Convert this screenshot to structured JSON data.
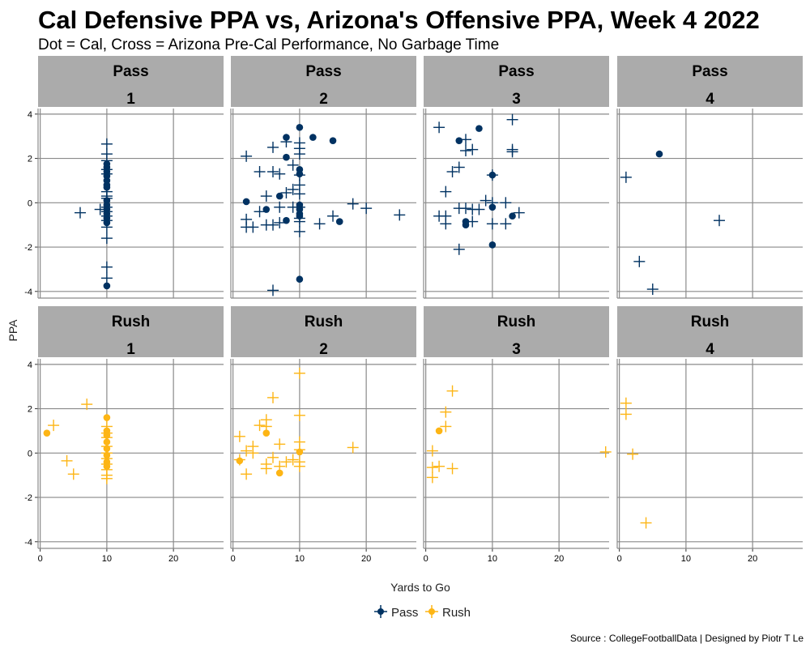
{
  "chart_data": {
    "type": "scatter",
    "title": "Cal Defensive PPA vs, Arizona's Offensive PPA, Week 4 2022",
    "subtitle": "Dot = Cal, Cross = Arizona Pre-Cal Performance, No Garbage Time",
    "xlabel": "Yards to Go",
    "ylabel": "PPA",
    "xlim": [
      -0.2,
      27.4
    ],
    "ylim": [
      -4.3,
      4.25
    ],
    "x_ticks": [
      0,
      10,
      20
    ],
    "y_ticks": [
      4,
      2,
      0,
      -2,
      -4
    ],
    "x_tick_labels": [
      "0",
      "10",
      "20"
    ],
    "y_tick_labels": [
      "4",
      "2",
      "0",
      "-2",
      "-4"
    ],
    "grid": true,
    "legend": {
      "placement": "bottom",
      "entries": [
        {
          "name": "Pass",
          "color": "#003262"
        },
        {
          "name": "Rush",
          "color": "#FDB515"
        }
      ]
    },
    "caption": "Source : CollegeFootballData | Designed by Piotr T Le",
    "facets": [
      {
        "type": "Pass",
        "down": "1",
        "dots": [
          [
            10,
            1.75
          ],
          [
            10,
            1.6
          ],
          [
            10,
            1.4
          ],
          [
            10,
            1.2
          ],
          [
            10,
            1.0
          ],
          [
            10,
            0.8
          ],
          [
            10,
            0.7
          ],
          [
            10,
            0.1
          ],
          [
            10,
            -0.1
          ],
          [
            10,
            -0.3
          ],
          [
            10,
            -0.5
          ],
          [
            10,
            -0.7
          ],
          [
            10,
            -0.9
          ],
          [
            10,
            -3.75
          ]
        ],
        "crosses": [
          [
            10,
            2.65
          ],
          [
            10,
            2.2
          ],
          [
            10,
            1.9
          ],
          [
            10,
            1.5
          ],
          [
            10,
            1.3
          ],
          [
            10,
            0.5
          ],
          [
            10,
            0.3
          ],
          [
            10,
            0.2
          ],
          [
            10,
            -0.2
          ],
          [
            10,
            -0.4
          ],
          [
            10,
            -0.6
          ],
          [
            10,
            -0.8
          ],
          [
            10,
            -1.1
          ],
          [
            10,
            -1.6
          ],
          [
            10,
            -2.9
          ],
          [
            10,
            -3.4
          ],
          [
            6,
            -0.45
          ],
          [
            9,
            -0.3
          ]
        ]
      },
      {
        "type": "Pass",
        "down": "2",
        "dots": [
          [
            10,
            3.4
          ],
          [
            8,
            2.95
          ],
          [
            12,
            2.95
          ],
          [
            15,
            2.8
          ],
          [
            8,
            2.05
          ],
          [
            10,
            1.5
          ],
          [
            10,
            1.3
          ],
          [
            7,
            0.3
          ],
          [
            2,
            0.05
          ],
          [
            10,
            -0.1
          ],
          [
            10,
            -0.3
          ],
          [
            10,
            -0.5
          ],
          [
            10,
            -0.6
          ],
          [
            5,
            -0.3
          ],
          [
            8,
            -0.8
          ],
          [
            16,
            -0.85
          ],
          [
            10,
            -3.45
          ]
        ],
        "crosses": [
          [
            2,
            2.1
          ],
          [
            6,
            2.5
          ],
          [
            8,
            2.75
          ],
          [
            10,
            2.7
          ],
          [
            10,
            2.45
          ],
          [
            10,
            2.2
          ],
          [
            4,
            1.4
          ],
          [
            6,
            1.4
          ],
          [
            7,
            1.3
          ],
          [
            9,
            1.7
          ],
          [
            10,
            1.25
          ],
          [
            9,
            0.6
          ],
          [
            10,
            0.8
          ],
          [
            5,
            0.3
          ],
          [
            8,
            0.45
          ],
          [
            10,
            0.4
          ],
          [
            2,
            -0.75
          ],
          [
            4,
            -0.4
          ],
          [
            7,
            -0.2
          ],
          [
            9,
            -0.2
          ],
          [
            10,
            -0.2
          ],
          [
            10,
            -0.7
          ],
          [
            2,
            -1.1
          ],
          [
            3,
            -1.1
          ],
          [
            5,
            -1.0
          ],
          [
            6,
            -1.0
          ],
          [
            7,
            -0.9
          ],
          [
            10,
            -0.85
          ],
          [
            10,
            -1.3
          ],
          [
            13,
            -0.95
          ],
          [
            15,
            -0.6
          ],
          [
            18,
            -0.05
          ],
          [
            20,
            -0.25
          ],
          [
            25,
            -0.55
          ],
          [
            6,
            -3.95
          ]
        ]
      },
      {
        "type": "Pass",
        "down": "3",
        "dots": [
          [
            5,
            2.8
          ],
          [
            8,
            3.35
          ],
          [
            10,
            1.25
          ],
          [
            10,
            -0.2
          ],
          [
            13,
            -0.6
          ],
          [
            6,
            -0.85
          ],
          [
            6,
            -1.0
          ],
          [
            10,
            -1.9
          ]
        ],
        "crosses": [
          [
            2,
            3.4
          ],
          [
            13,
            3.75
          ],
          [
            6,
            2.85
          ],
          [
            6,
            2.35
          ],
          [
            7,
            2.4
          ],
          [
            13,
            2.4
          ],
          [
            13,
            2.3
          ],
          [
            5,
            1.6
          ],
          [
            4,
            1.4
          ],
          [
            3,
            0.5
          ],
          [
            10,
            1.25
          ],
          [
            9,
            0.1
          ],
          [
            10,
            0
          ],
          [
            12,
            0
          ],
          [
            5,
            -0.25
          ],
          [
            6,
            -0.25
          ],
          [
            7,
            -0.3
          ],
          [
            8,
            -0.3
          ],
          [
            2,
            -0.6
          ],
          [
            3,
            -0.6
          ],
          [
            14,
            -0.45
          ],
          [
            3,
            -0.95
          ],
          [
            7,
            -0.85
          ],
          [
            10,
            -0.95
          ],
          [
            12,
            -0.95
          ],
          [
            5,
            -2.1
          ]
        ]
      },
      {
        "type": "Pass",
        "down": "4",
        "dots": [
          [
            6,
            2.2
          ]
        ],
        "crosses": [
          [
            1,
            1.15
          ],
          [
            15,
            -0.8
          ],
          [
            3,
            -2.65
          ],
          [
            5,
            -3.9
          ]
        ]
      },
      {
        "type": "Rush",
        "down": "1",
        "dots": [
          [
            1,
            0.9
          ],
          [
            10,
            1.6
          ],
          [
            10,
            1.0
          ],
          [
            10,
            0.8
          ],
          [
            10,
            0.5
          ],
          [
            10,
            0.2
          ],
          [
            10,
            -0.1
          ],
          [
            10,
            -0.4
          ],
          [
            10,
            -0.6
          ]
        ],
        "crosses": [
          [
            2,
            1.25
          ],
          [
            7,
            2.2
          ],
          [
            4,
            -0.35
          ],
          [
            5,
            -0.95
          ],
          [
            10,
            1.2
          ],
          [
            10,
            0.9
          ],
          [
            10,
            0.7
          ],
          [
            10,
            0.3
          ],
          [
            10,
            0
          ],
          [
            10,
            -0.25
          ],
          [
            10,
            -0.5
          ],
          [
            10,
            -0.75
          ],
          [
            10,
            -1.0
          ],
          [
            10,
            -1.15
          ]
        ]
      },
      {
        "type": "Rush",
        "down": "2",
        "dots": [
          [
            5,
            0.9
          ],
          [
            1,
            -0.35
          ],
          [
            10,
            0.05
          ],
          [
            7,
            -0.9
          ]
        ],
        "crosses": [
          [
            10,
            3.6
          ],
          [
            6,
            2.5
          ],
          [
            10,
            1.7
          ],
          [
            5,
            1.5
          ],
          [
            4,
            1.25
          ],
          [
            5,
            1.2
          ],
          [
            1,
            0.75
          ],
          [
            3,
            0.3
          ],
          [
            7,
            0.4
          ],
          [
            10,
            0.5
          ],
          [
            18,
            0.25
          ],
          [
            2,
            0.1
          ],
          [
            3,
            0
          ],
          [
            10,
            0.15
          ],
          [
            1,
            -0.3
          ],
          [
            6,
            -0.2
          ],
          [
            9,
            -0.3
          ],
          [
            5,
            -0.5
          ],
          [
            5,
            -0.7
          ],
          [
            7,
            -0.6
          ],
          [
            10,
            -0.4
          ],
          [
            10,
            -0.6
          ],
          [
            8,
            -0.4
          ],
          [
            2,
            -0.95
          ]
        ]
      },
      {
        "type": "Rush",
        "down": "3",
        "dots": [
          [
            2,
            1.0
          ]
        ],
        "crosses": [
          [
            4,
            2.8
          ],
          [
            3,
            1.85
          ],
          [
            3,
            1.2
          ],
          [
            1,
            0.1
          ],
          [
            27,
            0.05
          ],
          [
            1,
            -0.65
          ],
          [
            2,
            -0.6
          ],
          [
            4,
            -0.7
          ],
          [
            1,
            -1.1
          ]
        ]
      },
      {
        "type": "Rush",
        "down": "4",
        "dots": [],
        "crosses": [
          [
            1,
            2.25
          ],
          [
            1,
            1.75
          ],
          [
            2,
            -0.05
          ],
          [
            4,
            -3.15
          ]
        ]
      }
    ]
  }
}
